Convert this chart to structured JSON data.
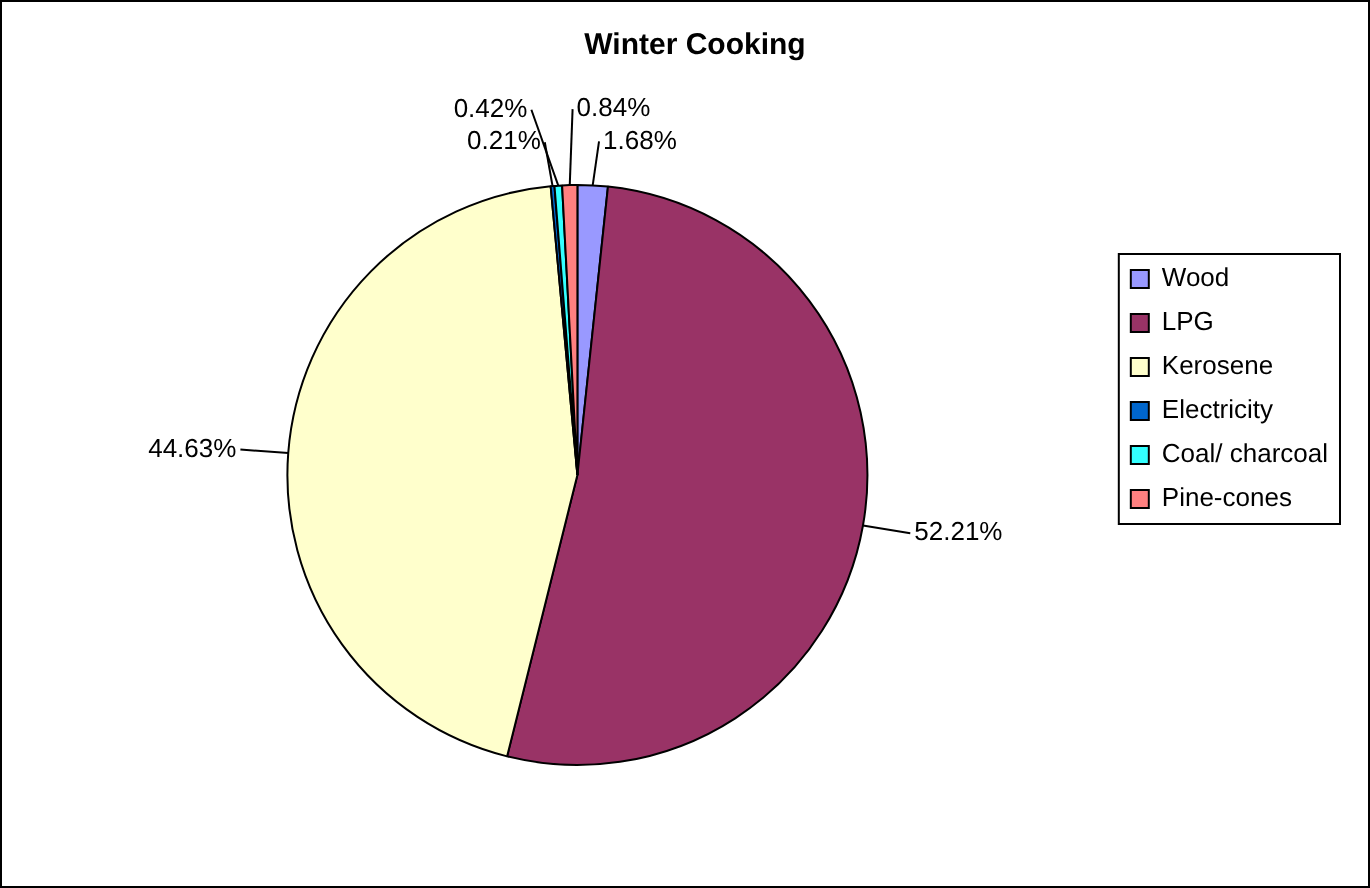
{
  "chart_data": {
    "type": "pie",
    "title": "Winter Cooking",
    "categories": [
      "Wood",
      "LPG",
      "Kerosene",
      "Electricity",
      "Coal/ charcoal",
      "Pine-cones"
    ],
    "values": [
      1.68,
      52.21,
      44.63,
      0.21,
      0.42,
      0.84
    ],
    "colors": [
      "#9999ff",
      "#993366",
      "#ffffcc",
      "#0066cc",
      "#33ffff",
      "#ff8080"
    ],
    "value_labels": [
      "1.68%",
      "52.21%",
      "44.63%",
      "0.21%",
      "0.42%",
      "0.84%"
    ],
    "legend": "right"
  }
}
